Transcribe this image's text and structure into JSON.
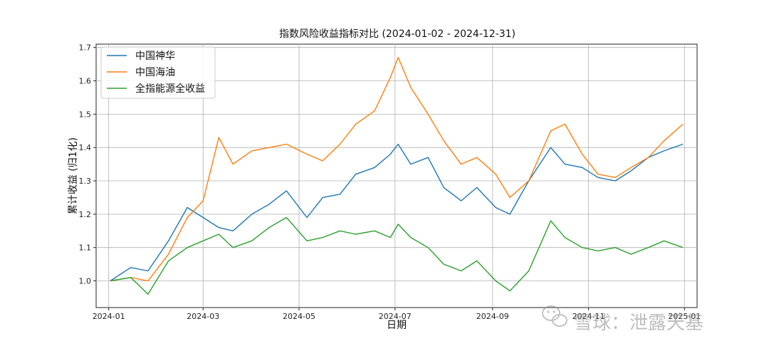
{
  "chart_data": {
    "type": "line",
    "title": "指数风险收益指标对比 (2024-01-02 - 2024-12-31)",
    "xlabel": "日期",
    "ylabel": "累计收益 (归1化)",
    "ylim": [
      0.92,
      1.71
    ],
    "xlim": [
      "2023-12-24",
      "2025-01-09"
    ],
    "x_ticks": [
      "2024-01",
      "2024-03",
      "2024-05",
      "2024-07",
      "2024-09",
      "2024-11",
      "2025-01"
    ],
    "y_ticks": [
      1.0,
      1.1,
      1.2,
      1.3,
      1.4,
      1.5,
      1.6,
      1.7
    ],
    "y_tick_labels": [
      "1.0",
      "1.1",
      "1.2",
      "1.3",
      "1.4",
      "1.5",
      "1.6",
      "1.7"
    ],
    "grid": true,
    "legend_position": "upper-left",
    "x": [
      "2024-01-02",
      "2024-01-15",
      "2024-01-26",
      "2024-02-08",
      "2024-02-20",
      "2024-03-01",
      "2024-03-11",
      "2024-03-20",
      "2024-04-01",
      "2024-04-12",
      "2024-04-23",
      "2024-05-06",
      "2024-05-16",
      "2024-05-27",
      "2024-06-06",
      "2024-06-18",
      "2024-06-28",
      "2024-07-03",
      "2024-07-11",
      "2024-07-22",
      "2024-08-01",
      "2024-08-12",
      "2024-08-22",
      "2024-09-03",
      "2024-09-12",
      "2024-09-24",
      "2024-10-08",
      "2024-10-17",
      "2024-10-28",
      "2024-11-07",
      "2024-11-18",
      "2024-11-28",
      "2024-12-09",
      "2024-12-19",
      "2024-12-31"
    ],
    "series": [
      {
        "name": "中国神华",
        "color": "#1f77b4",
        "values": [
          1.0,
          1.04,
          1.03,
          1.12,
          1.22,
          1.19,
          1.16,
          1.15,
          1.2,
          1.23,
          1.27,
          1.19,
          1.25,
          1.26,
          1.32,
          1.34,
          1.38,
          1.41,
          1.35,
          1.37,
          1.28,
          1.24,
          1.28,
          1.22,
          1.2,
          1.3,
          1.4,
          1.35,
          1.34,
          1.31,
          1.3,
          1.33,
          1.37,
          1.39,
          1.41
        ]
      },
      {
        "name": "中国海油",
        "color": "#ff7f0e",
        "values": [
          1.0,
          1.01,
          1.0,
          1.08,
          1.19,
          1.24,
          1.43,
          1.35,
          1.39,
          1.4,
          1.41,
          1.38,
          1.36,
          1.41,
          1.47,
          1.51,
          1.61,
          1.67,
          1.58,
          1.5,
          1.42,
          1.35,
          1.37,
          1.32,
          1.25,
          1.3,
          1.45,
          1.47,
          1.38,
          1.32,
          1.31,
          1.34,
          1.37,
          1.42,
          1.47
        ]
      },
      {
        "name": "全指能源全收益",
        "color": "#2ca02c",
        "values": [
          1.0,
          1.01,
          0.96,
          1.06,
          1.1,
          1.12,
          1.14,
          1.1,
          1.12,
          1.16,
          1.19,
          1.12,
          1.13,
          1.15,
          1.14,
          1.15,
          1.13,
          1.17,
          1.13,
          1.1,
          1.05,
          1.03,
          1.06,
          1.0,
          0.97,
          1.03,
          1.18,
          1.13,
          1.1,
          1.09,
          1.1,
          1.08,
          1.1,
          1.12,
          1.1
        ]
      }
    ]
  },
  "watermark": {
    "text": "雪球：泄露天基",
    "icon": "wechat-logo-icon"
  }
}
